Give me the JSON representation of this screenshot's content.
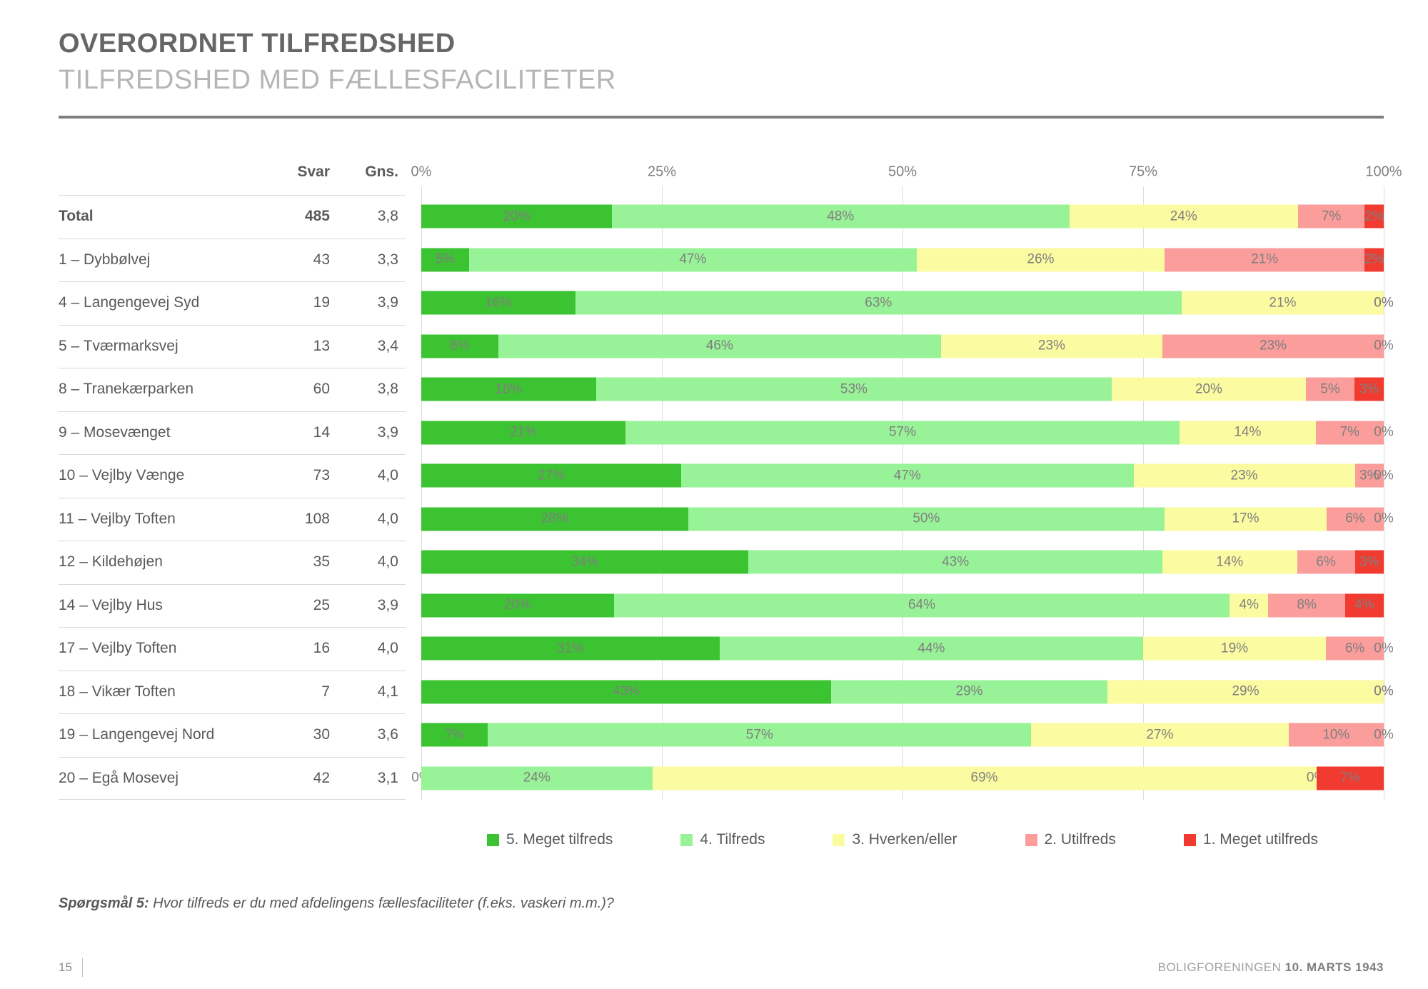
{
  "header": {
    "title": "OVERORDNET TILFREDSHED",
    "subtitle": "TILFREDSHED MED FÆLLESFACILITETER"
  },
  "table": {
    "col_svar": "Svar",
    "col_gns": "Gns."
  },
  "chart_data": {
    "type": "bar",
    "stacked": true,
    "orientation": "horizontal",
    "xlim": [
      0,
      100
    ],
    "axis_ticks": [
      "0%",
      "25%",
      "50%",
      "75%",
      "100%"
    ],
    "grid": true,
    "legend_position": "bottom",
    "series_names": [
      "5. Meget tilfreds",
      "4. Tilfreds",
      "3. Hverken/eller",
      "2. Utilfreds",
      "1. Meget utilfreds"
    ],
    "series_colors": [
      "#3cc332",
      "#98f297",
      "#fbfba1",
      "#fa9d9b",
      "#f23b30"
    ],
    "rows": [
      {
        "label": "Total",
        "bold": true,
        "svar": "485",
        "gns": "3,8",
        "values": [
          20,
          48,
          24,
          7,
          2
        ]
      },
      {
        "label": "1 – Dybbølvej",
        "bold": false,
        "svar": "43",
        "gns": "3,3",
        "values": [
          5,
          47,
          26,
          21,
          2
        ]
      },
      {
        "label": "4 – Langengevej Syd",
        "bold": false,
        "svar": "19",
        "gns": "3,9",
        "values": [
          16,
          63,
          21,
          0,
          0
        ]
      },
      {
        "label": "5 – Tværmarksvej",
        "bold": false,
        "svar": "13",
        "gns": "3,4",
        "values": [
          8,
          46,
          23,
          23,
          0
        ]
      },
      {
        "label": "8 – Tranekærparken",
        "bold": false,
        "svar": "60",
        "gns": "3,8",
        "values": [
          18,
          53,
          20,
          5,
          3
        ]
      },
      {
        "label": "9 – Mosevænget",
        "bold": false,
        "svar": "14",
        "gns": "3,9",
        "values": [
          21,
          57,
          14,
          7,
          0
        ]
      },
      {
        "label": "10 – Vejlby Vænge",
        "bold": false,
        "svar": "73",
        "gns": "4,0",
        "values": [
          27,
          47,
          23,
          3,
          0
        ]
      },
      {
        "label": "11 – Vejlby Toften",
        "bold": false,
        "svar": "108",
        "gns": "4,0",
        "values": [
          28,
          50,
          17,
          6,
          0
        ]
      },
      {
        "label": "12 – Kildehøjen",
        "bold": false,
        "svar": "35",
        "gns": "4,0",
        "values": [
          34,
          43,
          14,
          6,
          3
        ]
      },
      {
        "label": "14 – Vejlby Hus",
        "bold": false,
        "svar": "25",
        "gns": "3,9",
        "values": [
          20,
          64,
          4,
          8,
          4
        ]
      },
      {
        "label": "17 – Vejlby Toften",
        "bold": false,
        "svar": "16",
        "gns": "4,0",
        "values": [
          31,
          44,
          19,
          6,
          0
        ]
      },
      {
        "label": "18 – Vikær Toften",
        "bold": false,
        "svar": "7",
        "gns": "4,1",
        "values": [
          43,
          29,
          29,
          0,
          0
        ]
      },
      {
        "label": "19 – Langengevej Nord",
        "bold": false,
        "svar": "30",
        "gns": "3,6",
        "values": [
          7,
          57,
          27,
          10,
          0
        ]
      },
      {
        "label": "20 – Egå Mosevej",
        "bold": false,
        "svar": "42",
        "gns": "3,1",
        "values": [
          0,
          24,
          69,
          0,
          7
        ]
      }
    ]
  },
  "legend": {
    "items": [
      {
        "label": "5. Meget tilfreds",
        "color": "#3cc332"
      },
      {
        "label": "4. Tilfreds",
        "color": "#98f297"
      },
      {
        "label": "3. Hverken/eller",
        "color": "#fbfba1"
      },
      {
        "label": "2. Utilfreds",
        "color": "#fa9d9b"
      },
      {
        "label": "1. Meget utilfreds",
        "color": "#f23b30"
      }
    ]
  },
  "footnote": {
    "prefix": "Spørgsmål 5:",
    "text": "Hvor tilfreds er du med afdelingens fællesfaciliteter (f.eks. vaskeri m.m.)?"
  },
  "footer": {
    "page": "15",
    "org": "BOLIGFORENINGEN",
    "date": "10. MARTS 1943"
  }
}
